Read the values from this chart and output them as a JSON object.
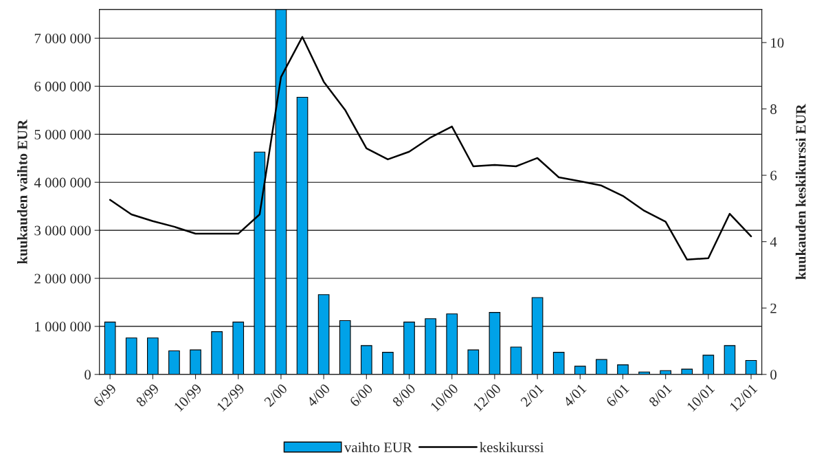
{
  "chart_data": {
    "type": "bar",
    "ylabel": "kuukauden vaihto EUR",
    "y2label": "kuukauden keskikurssi EUR",
    "categories": [
      "6/99",
      null,
      "8/99",
      null,
      "10/99",
      null,
      "12/99",
      null,
      "2/00",
      null,
      "4/00",
      null,
      "6/00",
      null,
      "8/00",
      null,
      "10/00",
      null,
      "12/00",
      null,
      "2/01",
      null,
      "4/01",
      null,
      "6/01",
      null,
      "8/01",
      null,
      "10/01",
      null,
      "12/01"
    ],
    "series": [
      {
        "name": "vaihto EUR",
        "color": "#00a2e8",
        "values": [
          1090000,
          760000,
          760000,
          490000,
          510000,
          890000,
          1090000,
          4630000,
          7600000,
          5770000,
          1660000,
          1120000,
          600000,
          460000,
          1090000,
          1160000,
          1260000,
          510000,
          1290000,
          570000,
          1600000,
          460000,
          170000,
          310000,
          200000,
          50000,
          80000,
          110000,
          400000,
          600000,
          290000
        ]
      },
      {
        "name": "keskikurssi",
        "type": "line",
        "axis": "y2",
        "color": "#000000",
        "values": [
          5.26,
          4.82,
          4.62,
          4.45,
          4.24,
          4.24,
          4.24,
          4.82,
          8.96,
          10.17,
          8.82,
          7.97,
          6.81,
          6.48,
          6.71,
          7.14,
          7.47,
          6.27,
          6.31,
          6.27,
          6.52,
          5.94,
          5.82,
          5.69,
          5.38,
          4.93,
          4.6,
          3.46,
          3.5,
          4.84,
          4.16
        ]
      }
    ],
    "ylim": [
      0,
      7600000
    ],
    "yticks": [
      {
        "value": 0,
        "label": "0"
      },
      {
        "value": 1000000,
        "label": "1 000 000"
      },
      {
        "value": 2000000,
        "label": "2 000 000"
      },
      {
        "value": 3000000,
        "label": "3 000 000"
      },
      {
        "value": 4000000,
        "label": "4 000 000"
      },
      {
        "value": 5000000,
        "label": "5 000 000"
      },
      {
        "value": 6000000,
        "label": "6 000 000"
      },
      {
        "value": 7000000,
        "label": "7 000 000"
      }
    ],
    "y2lim": [
      0,
      11
    ],
    "y2ticks": [
      0,
      2,
      4,
      6,
      8,
      10
    ],
    "grid": "y",
    "legend": "bottom"
  }
}
